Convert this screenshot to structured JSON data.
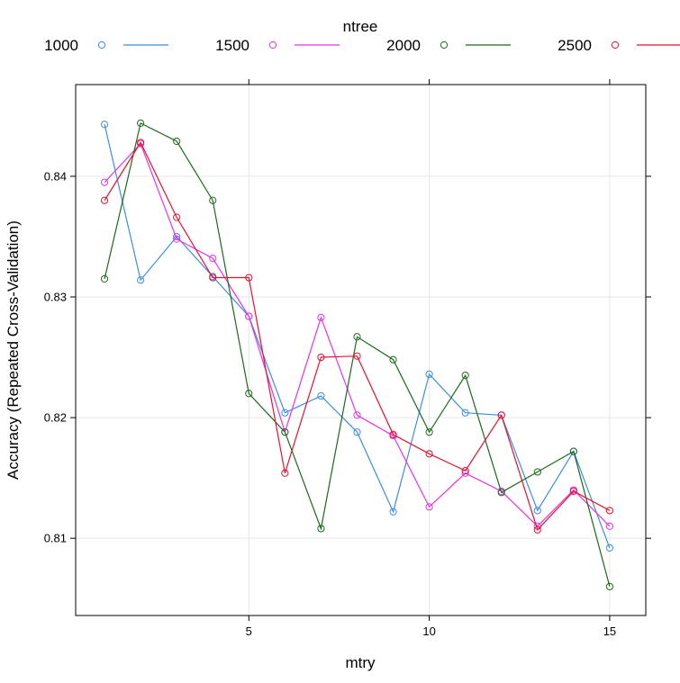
{
  "chart_data": {
    "type": "line",
    "xlabel": "mtry",
    "ylabel": "Accuracy (Repeated Cross-Validation)",
    "legend_title": "ntree",
    "legend_position": "top",
    "grid": true,
    "xlim": [
      0.2,
      16.0
    ],
    "ylim": [
      0.8036,
      0.8476
    ],
    "x_ticks": [
      5,
      10,
      15
    ],
    "y_ticks": [
      0.81,
      0.82,
      0.83,
      0.84
    ],
    "x": [
      1,
      2,
      3,
      4,
      5,
      6,
      7,
      8,
      9,
      10,
      11,
      12,
      13,
      14,
      15
    ],
    "series": [
      {
        "name": "1000",
        "color": "#3b8ee0",
        "values": [
          0.8443,
          0.8314,
          0.835,
          0.8317,
          0.8284,
          0.8204,
          0.8218,
          0.8188,
          0.8122,
          0.8236,
          0.8204,
          0.8202,
          0.8123,
          0.8172,
          0.8092
        ]
      },
      {
        "name": "1500",
        "color": "#e832e8",
        "values": [
          0.8395,
          0.8427,
          0.8348,
          0.8332,
          0.8284,
          0.8188,
          0.8283,
          0.8202,
          0.8185,
          0.8126,
          0.8154,
          0.8139,
          0.811,
          0.814,
          0.811
        ]
      },
      {
        "name": "2000",
        "color": "#1a6b1a",
        "values": [
          0.8315,
          0.8444,
          0.8429,
          0.838,
          0.822,
          0.8188,
          0.8108,
          0.8267,
          0.8248,
          0.8188,
          0.8235,
          0.8138,
          0.8155,
          0.8172,
          0.806
        ]
      },
      {
        "name": "2500",
        "color": "#e8102e",
        "values": [
          0.838,
          0.8428,
          0.8366,
          0.8316,
          0.8316,
          0.8154,
          0.825,
          0.8251,
          0.8186,
          0.817,
          0.8156,
          0.8202,
          0.8107,
          0.8139,
          0.8123
        ]
      }
    ]
  }
}
